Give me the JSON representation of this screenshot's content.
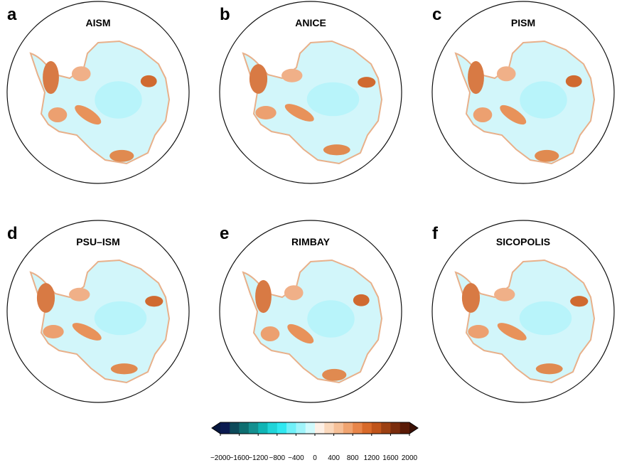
{
  "panels": [
    {
      "letter": "a",
      "title": "AISM"
    },
    {
      "letter": "b",
      "title": "ANICE"
    },
    {
      "letter": "c",
      "title": "PISM"
    },
    {
      "letter": "d",
      "title": "PSU–ISM"
    },
    {
      "letter": "e",
      "title": "RIMBAY"
    },
    {
      "letter": "f",
      "title": "SICOPOLIS"
    }
  ],
  "colorbar": {
    "lim": [
      -2000,
      2000
    ],
    "ticks": [
      {
        "value": -2000,
        "label": "−2000"
      },
      {
        "value": -1600,
        "label": "−1600"
      },
      {
        "value": -1200,
        "label": "−1200"
      },
      {
        "value": -800,
        "label": "−800"
      },
      {
        "value": -400,
        "label": "−400"
      },
      0,
      400,
      800,
      1200,
      1600,
      2000
    ],
    "colors": [
      "#0a1a50",
      "#0d4a5a",
      "#0e6e70",
      "#149090",
      "#10b4b4",
      "#20d4d8",
      "#30e8f0",
      "#70f0f8",
      "#a0f4fa",
      "#d0fafc",
      "#fdf0e6",
      "#fad8bc",
      "#f6c098",
      "#f0a470",
      "#e8864a",
      "#d86a2a",
      "#c0541a",
      "#9c4012",
      "#7a2c0c",
      "#5a1a06"
    ],
    "under_color": "#06163e",
    "over_color": "#3a1004"
  }
}
